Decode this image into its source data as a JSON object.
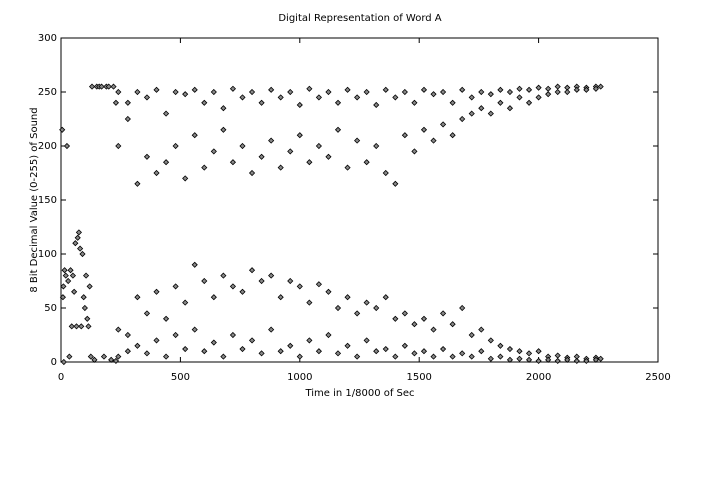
{
  "chart_data": {
    "type": "scatter",
    "title": "Digital Representation of Word A",
    "xlabel": "Time in 1/8000 of Sec",
    "ylabel": "8 Bit Decimal Value (0-255) of Sound",
    "xlim": [
      0,
      2500
    ],
    "ylim": [
      0,
      300
    ],
    "xticks": [
      0,
      500,
      1000,
      1500,
      2000,
      2500
    ],
    "yticks": [
      0,
      50,
      100,
      150,
      200,
      250,
      300
    ],
    "color": "#000000",
    "x": [
      5,
      15,
      10,
      8,
      12,
      20,
      25,
      30,
      35,
      40,
      45,
      50,
      55,
      60,
      65,
      70,
      75,
      80,
      85,
      90,
      95,
      100,
      105,
      110,
      115,
      120,
      125,
      130,
      140,
      150,
      160,
      170,
      180,
      190,
      200,
      210,
      220,
      230,
      230,
      240,
      240,
      240,
      240,
      280,
      280,
      280,
      280,
      320,
      320,
      320,
      320,
      360,
      360,
      360,
      360,
      400,
      400,
      400,
      400,
      440,
      440,
      440,
      440,
      480,
      480,
      480,
      480,
      520,
      520,
      520,
      520,
      560,
      560,
      560,
      560,
      600,
      600,
      600,
      600,
      640,
      640,
      640,
      640,
      680,
      680,
      680,
      680,
      720,
      720,
      720,
      720,
      760,
      760,
      760,
      760,
      800,
      800,
      800,
      800,
      840,
      840,
      840,
      840,
      880,
      880,
      880,
      880,
      920,
      920,
      920,
      920,
      960,
      960,
      960,
      960,
      1000,
      1000,
      1000,
      1000,
      1040,
      1040,
      1040,
      1040,
      1080,
      1080,
      1080,
      1080,
      1120,
      1120,
      1120,
      1120,
      1160,
      1160,
      1160,
      1160,
      1200,
      1200,
      1200,
      1200,
      1240,
      1240,
      1240,
      1240,
      1280,
      1280,
      1280,
      1280,
      1320,
      1320,
      1320,
      1320,
      1360,
      1360,
      1360,
      1360,
      1400,
      1400,
      1400,
      1400,
      1440,
      1440,
      1440,
      1440,
      1480,
      1480,
      1480,
      1480,
      1520,
      1520,
      1520,
      1520,
      1560,
      1560,
      1560,
      1560,
      1600,
      1600,
      1600,
      1600,
      1640,
      1640,
      1640,
      1640,
      1680,
      1680,
      1680,
      1680,
      1720,
      1720,
      1720,
      1720,
      1760,
      1760,
      1760,
      1760,
      1800,
      1800,
      1800,
      1800,
      1840,
      1840,
      1840,
      1840,
      1880,
      1880,
      1880,
      1880,
      1920,
      1920,
      1920,
      1920,
      1960,
      1960,
      1960,
      1960,
      2000,
      2000,
      2000,
      2000,
      2040,
      2040,
      2040,
      2040,
      2080,
      2080,
      2080,
      2080,
      2120,
      2120,
      2120,
      2120,
      2160,
      2160,
      2160,
      2160,
      2200,
      2200,
      2200,
      2200,
      2240,
      2240,
      2240,
      2240,
      2260,
      2260
    ],
    "values": [
      215,
      85,
      70,
      60,
      0,
      80,
      200,
      75,
      5,
      85,
      33,
      80,
      65,
      110,
      33,
      115,
      120,
      105,
      33,
      100,
      60,
      50,
      80,
      40,
      33,
      70,
      5,
      255,
      2,
      255,
      255,
      255,
      5,
      255,
      255,
      2,
      255,
      240,
      1,
      250,
      200,
      30,
      5,
      240,
      225,
      25,
      10,
      250,
      165,
      60,
      15,
      245,
      190,
      45,
      8,
      252,
      175,
      65,
      20,
      230,
      185,
      40,
      5,
      250,
      200,
      70,
      25,
      248,
      170,
      55,
      12,
      252,
      210,
      90,
      30,
      240,
      180,
      75,
      10,
      250,
      195,
      60,
      18,
      235,
      215,
      80,
      5,
      253,
      185,
      70,
      25,
      245,
      200,
      65,
      12,
      250,
      175,
      85,
      20,
      240,
      190,
      75,
      8,
      252,
      205,
      80,
      30,
      245,
      180,
      60,
      10,
      250,
      195,
      75,
      15,
      238,
      210,
      70,
      5,
      253,
      185,
      55,
      20,
      245,
      200,
      72,
      10,
      250,
      190,
      65,
      25,
      240,
      215,
      50,
      8,
      252,
      180,
      60,
      15,
      245,
      205,
      45,
      5,
      250,
      185,
      55,
      20,
      238,
      200,
      50,
      10,
      252,
      175,
      60,
      12,
      245,
      165,
      40,
      5,
      250,
      210,
      45,
      15,
      240,
      195,
      35,
      8,
      252,
      215,
      40,
      10,
      248,
      205,
      30,
      5,
      250,
      220,
      45,
      12,
      240,
      210,
      35,
      5,
      252,
      225,
      50,
      8,
      245,
      230,
      25,
      5,
      250,
      235,
      30,
      10,
      248,
      230,
      20,
      3,
      252,
      240,
      15,
      5,
      250,
      235,
      12,
      2,
      253,
      245,
      10,
      3,
      252,
      240,
      8,
      2,
      254,
      245,
      10,
      1,
      253,
      248,
      5,
      2,
      255,
      250,
      6,
      1,
      254,
      250,
      4,
      2,
      255,
      252,
      5,
      1,
      254,
      252,
      3,
      1,
      255,
      253,
      4,
      2,
      255,
      3
    ]
  }
}
